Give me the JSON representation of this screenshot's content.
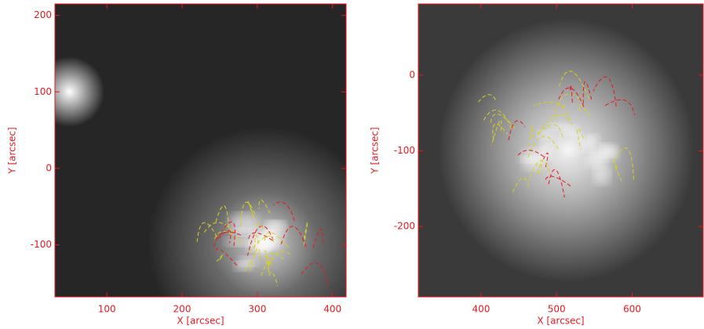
{
  "chart_data": [
    {
      "type": "image",
      "x_label": "X [arcsec]",
      "y_label": "Y [arcsec]",
      "xlim": [
        31,
        418
      ],
      "ylim": [
        -168,
        215
      ],
      "xticks": [
        100,
        200,
        300,
        400
      ],
      "yticks": [
        -100,
        0,
        100,
        200
      ]
    },
    {
      "type": "image",
      "x_label": "X [arcsec]",
      "y_label": "Y [arcsec]",
      "xlim": [
        317,
        694
      ],
      "ylim": [
        -293,
        94
      ],
      "xticks": [
        400,
        500,
        600
      ],
      "yticks": [
        -200,
        -100,
        0
      ]
    }
  ]
}
